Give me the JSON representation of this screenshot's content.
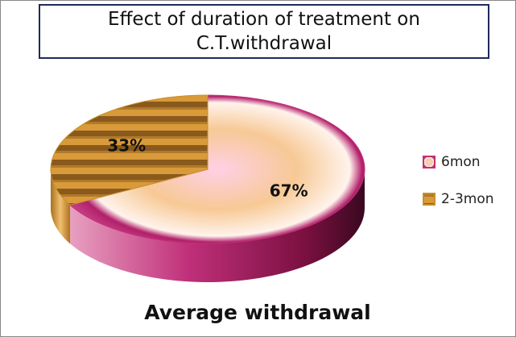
{
  "chart_data": {
    "type": "pie",
    "title": "Effect of duration of treatment on C.T.withdrawal",
    "x_label": "Average withdrawal",
    "categories": [
      "6mon",
      "2-3mon"
    ],
    "values": [
      67,
      33
    ],
    "value_labels": [
      "67%",
      "33%"
    ],
    "colors": [
      "#c0307a",
      "#c8902a"
    ],
    "legend": "right"
  }
}
